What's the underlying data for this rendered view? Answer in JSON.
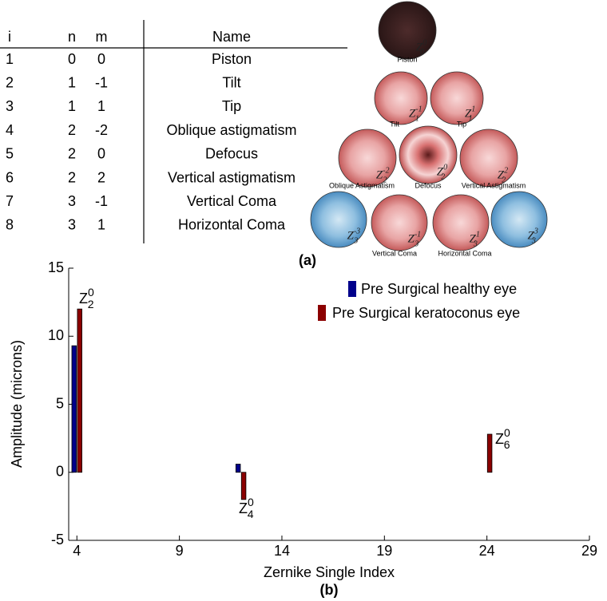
{
  "table": {
    "header": [
      "i",
      "n",
      "m",
      "Name"
    ],
    "rows": [
      [
        1,
        0,
        0,
        "Piston"
      ],
      [
        2,
        1,
        -1,
        "Tilt"
      ],
      [
        3,
        1,
        1,
        "Tip"
      ],
      [
        4,
        2,
        -2,
        "Oblique astigmatism"
      ],
      [
        5,
        2,
        0,
        "Defocus"
      ],
      [
        6,
        2,
        2,
        "Vertical astigmatism"
      ],
      [
        7,
        3,
        -1,
        "Vertical Coma"
      ],
      [
        8,
        3,
        1,
        "Horizontal Coma"
      ]
    ]
  },
  "caption_a": "(a)",
  "pyramid": {
    "symbol": "Z",
    "modes": [
      {
        "label": "Piston",
        "n": 0,
        "m": 0
      },
      {
        "label": "Tilt",
        "n": 1,
        "m": -1
      },
      {
        "label": "Tip",
        "n": 1,
        "m": 1
      },
      {
        "label": "Oblique Astigmatism",
        "n": 2,
        "m": -2
      },
      {
        "label": "Defocus",
        "n": 2,
        "m": 0
      },
      {
        "label": "Vertical Astigmatism",
        "n": 2,
        "m": 2
      },
      {
        "n": 3,
        "m": -3
      },
      {
        "label": "Vertical Coma",
        "n": 3,
        "m": -1
      },
      {
        "label": "Horizontal Coma",
        "n": 3,
        "m": 1
      },
      {
        "n": 3,
        "m": 3
      }
    ]
  },
  "chart_data": {
    "type": "bar",
    "x_label": "Zernike Single Index",
    "y_label": "Amplitude (microns)",
    "caption": "(b)",
    "x": [
      4,
      5,
      6,
      7,
      8,
      9,
      10,
      11,
      12,
      13,
      14,
      15,
      16,
      17,
      18,
      19,
      20,
      21,
      22,
      23,
      24,
      25,
      26,
      27,
      28
    ],
    "series": [
      {
        "name": "Pre Surgical healthy eye",
        "color": "#00008b",
        "values": [
          9.3,
          0,
          0,
          0,
          0,
          0,
          0,
          0,
          0.6,
          0,
          0,
          0,
          0,
          0,
          0,
          0,
          0,
          0,
          0,
          0,
          0,
          0,
          0,
          0,
          0
        ]
      },
      {
        "name": "Pre Surgical keratoconus eye",
        "color": "#8b0000",
        "values": [
          12.0,
          0,
          0,
          0,
          0,
          0,
          0,
          0,
          -2.0,
          0,
          0,
          0,
          0,
          0,
          0,
          0,
          0,
          0,
          0,
          0,
          2.8,
          0,
          0,
          0,
          0
        ]
      }
    ],
    "xlim": [
      3.6,
      29
    ],
    "ylim": [
      -5,
      15
    ],
    "xticks": [
      4,
      9,
      14,
      19,
      24,
      29
    ],
    "yticks": [
      -5,
      0,
      5,
      10,
      15
    ],
    "annotations": [
      {
        "symbol": "Z",
        "sub": 2,
        "sup": 0
      },
      {
        "symbol": "Z",
        "sub": 4,
        "sup": 0
      },
      {
        "symbol": "Z",
        "sub": 6,
        "sup": 0
      }
    ]
  }
}
